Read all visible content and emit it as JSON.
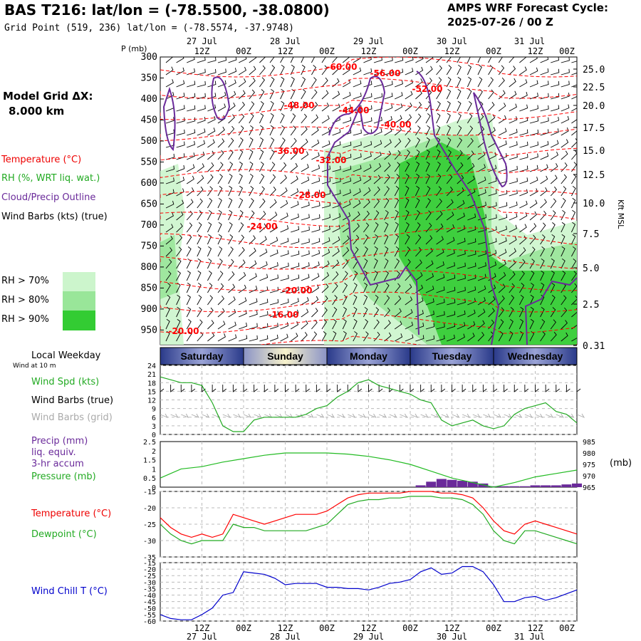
{
  "header": {
    "title": "BAS T216:  lat/lon = (-78.5500, -38.0800)",
    "subtitle": "Grid Point (519, 236) lat/lon = (-78.5574, -37.9748)",
    "cycle_line1": "AMPS WRF Forecast Cycle:",
    "cycle_line2": "2025-07-26 / 00  Z",
    "grid_label": "Model Grid ΔX:",
    "grid_value": "8.000 km"
  },
  "legend": {
    "temperature": "Temperature (°C)",
    "rh": "RH (%, WRT liq. wat.)",
    "cloud": "Cloud/Precip Outline",
    "wind": "Wind Barbs (kts) (true)",
    "rh70": "RH > 70%",
    "rh80": "RH > 80%",
    "rh90": "RH > 90%",
    "local_weekday": "Local Weekday",
    "wind_10m": "Wind at 10 m",
    "wind_spd": "Wind Spd (kts)",
    "wind_barbs_true": "Wind Barbs (true)",
    "wind_barbs_grid": "Wind Barbs (grid)",
    "precip1": "Precip (mm)",
    "precip2": "liq. equiv.",
    "precip3": "3-hr accum",
    "pressure": "Pressure (mb)",
    "pressure_unit": "(mb)",
    "temp2": "Temperature (°C)",
    "dewpoint": "Dewpoint (°C)",
    "windchill": "Wind Chill T (°C)",
    "p_axis": "P (mb)",
    "kft_axis": "Kft MSL"
  },
  "colors": {
    "temperature": "#ff0000",
    "rh": "#22aa22",
    "cloud": "#6a2a9a",
    "grid_barbs": "#aaaaaa",
    "pressure": "#22bb22",
    "windchill": "#0000cc",
    "rh70": "#ccf5cc",
    "rh80": "#99e699",
    "rh90": "#33cc33",
    "daybar_dark": "#2a3a8a",
    "daybar_light": "#f5f0c8"
  },
  "time_axis": {
    "top_ticks": [
      "12Z",
      "00Z",
      "12Z",
      "00Z",
      "12Z",
      "00Z",
      "12Z",
      "00Z",
      "12Z",
      "00Z"
    ],
    "top_dates": [
      {
        "at": 2,
        "label": "27 Jul"
      },
      {
        "at": 4,
        "label": "28 Jul"
      },
      {
        "at": 6,
        "label": "29 Jul"
      },
      {
        "at": 8,
        "label": "30 Jul"
      },
      {
        "at": 10,
        "label": "31 Jul"
      }
    ],
    "weekdays": [
      "Saturday",
      "Sunday",
      "Monday",
      "Tuesday",
      "Wednesday"
    ]
  },
  "chart_data": [
    {
      "type": "heatmap",
      "title": "",
      "ylabel": "P (mb)",
      "y2label": "Kft MSL",
      "pressure_ticks": [
        300,
        350,
        400,
        450,
        500,
        550,
        600,
        650,
        700,
        750,
        800,
        850,
        900,
        950
      ],
      "height_ticks": [
        "25.0",
        "22.5",
        "20.0",
        "17.5",
        "15.0",
        "12.5",
        "10.0",
        "7.5",
        "5.0",
        "2.5",
        "0.31"
      ],
      "temperature_contour_labels": [
        "-60.00",
        "-56.00",
        "-52.00",
        "-48.00",
        "-44.00",
        "-40.00",
        "-36.00",
        "-32.00",
        "-28.00",
        "-24.00",
        "-20.00",
        "-16.00",
        "-20.00"
      ]
    },
    {
      "type": "line",
      "title": "",
      "ylabel": "Wind Spd (kts)",
      "yticks": [
        0,
        3,
        6,
        9,
        12,
        15,
        18,
        21,
        24
      ],
      "ylim": [
        0,
        24
      ],
      "x": [
        0,
        3,
        6,
        9,
        12,
        15,
        18,
        21,
        24,
        27,
        30,
        33,
        36,
        39,
        42,
        45,
        48,
        51,
        54,
        57,
        60,
        63,
        66,
        69,
        72,
        75,
        78,
        81,
        84,
        87,
        90,
        93,
        96,
        99,
        102,
        105,
        108,
        111,
        114,
        117,
        120
      ],
      "values": [
        20,
        19,
        18,
        18,
        17,
        11,
        3,
        1,
        1,
        5,
        6,
        6,
        6,
        6,
        7,
        9,
        10,
        13,
        15,
        18,
        19,
        17,
        16,
        15,
        14,
        12,
        11,
        5,
        3,
        4,
        5,
        3,
        2,
        3,
        7,
        9,
        10,
        11,
        8,
        7,
        4
      ]
    },
    {
      "type": "bar",
      "title": "",
      "ylabel": "Precip (mm)",
      "y2label": "(mb)",
      "yticks": [
        0,
        0.5,
        1.0,
        1.5,
        2.0,
        2.5
      ],
      "y2ticks": [
        965,
        970,
        975,
        980,
        985
      ],
      "precip_x": [
        75,
        78,
        81,
        84,
        87,
        90,
        93,
        96,
        99,
        102,
        105,
        108,
        111,
        114,
        117,
        120
      ],
      "precip_values": [
        0.1,
        0.3,
        0.45,
        0.4,
        0.35,
        0.3,
        0.2,
        0.05,
        0.05,
        0.05,
        0.05,
        0.1,
        0.1,
        0.1,
        0.15,
        0.2
      ],
      "pressure_x": [
        0,
        6,
        12,
        18,
        24,
        30,
        36,
        42,
        48,
        54,
        60,
        66,
        72,
        78,
        84,
        90,
        96,
        102,
        108,
        114,
        120
      ],
      "pressure_values": [
        969,
        973,
        974,
        976,
        977.5,
        979,
        980,
        980,
        980,
        979.5,
        978.5,
        977,
        975,
        972,
        969,
        967,
        965,
        967,
        969.5,
        971,
        972.5
      ]
    },
    {
      "type": "line",
      "title": "",
      "ylabel": "Temperature (°C)",
      "yticks": [
        -35,
        -30,
        -25,
        -20,
        -15
      ],
      "ylim": [
        -35,
        -15
      ],
      "x": [
        0,
        3,
        6,
        9,
        12,
        15,
        18,
        21,
        24,
        27,
        30,
        33,
        36,
        39,
        42,
        45,
        48,
        51,
        54,
        57,
        60,
        63,
        66,
        69,
        72,
        75,
        78,
        81,
        84,
        87,
        90,
        93,
        96,
        99,
        102,
        105,
        108,
        111,
        114,
        117,
        120
      ],
      "series": [
        {
          "name": "Temperature",
          "values": [
            -23,
            -26,
            -28,
            -29,
            -28,
            -29,
            -28,
            -22,
            -23,
            -24,
            -25,
            -24,
            -23,
            -22,
            -22,
            -22,
            -21,
            -19,
            -17,
            -16,
            -15.5,
            -15.5,
            -15.5,
            -15.5,
            -15,
            -15,
            -15,
            -15.5,
            -15.5,
            -16,
            -17,
            -20,
            -24,
            -27,
            -28,
            -25,
            -24,
            -25,
            -26,
            -27,
            -28
          ]
        },
        {
          "name": "Dewpoint",
          "values": [
            -25,
            -28,
            -30,
            -31,
            -30,
            -30,
            -30,
            -25,
            -26,
            -26,
            -27,
            -27,
            -27,
            -27,
            -27,
            -26,
            -25,
            -22,
            -19,
            -18,
            -17.5,
            -17.5,
            -17,
            -17,
            -16.5,
            -16.5,
            -16.5,
            -17,
            -17,
            -17.5,
            -19,
            -22,
            -27,
            -30,
            -31,
            -27,
            -27,
            -28,
            -29,
            -30,
            -31
          ]
        }
      ]
    },
    {
      "type": "line",
      "title": "",
      "ylabel": "Wind Chill T (°C)",
      "yticks": [
        -60,
        -55,
        -50,
        -45,
        -40,
        -35,
        -30,
        -25,
        -20,
        -15
      ],
      "ylim": [
        -60,
        -15
      ],
      "x": [
        0,
        3,
        6,
        9,
        12,
        15,
        18,
        21,
        24,
        27,
        30,
        33,
        36,
        39,
        42,
        45,
        48,
        51,
        54,
        57,
        60,
        63,
        66,
        69,
        72,
        75,
        78,
        81,
        84,
        87,
        90,
        93,
        96,
        99,
        102,
        105,
        108,
        111,
        114,
        117,
        120
      ],
      "values": [
        -55,
        -58,
        -59,
        -59,
        -55,
        -50,
        -40,
        -38,
        -22,
        -23,
        -24,
        -27,
        -32,
        -31,
        -31,
        -31,
        -34,
        -34,
        -35,
        -35,
        -36,
        -34,
        -31,
        -30,
        -28,
        -22,
        -19,
        -24,
        -23,
        -18,
        -18,
        -22,
        -32,
        -45,
        -45,
        -42,
        -41,
        -44,
        -42,
        -39,
        -36
      ]
    }
  ]
}
